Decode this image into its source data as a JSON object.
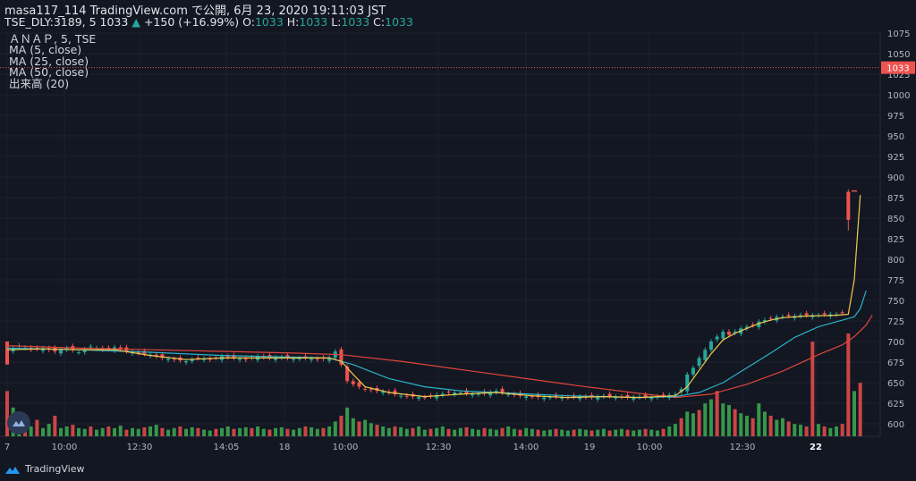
{
  "header": {
    "publish_line": "masa117_114 TradingView.com で公開, 6月 23, 2020 19:11:03 JST",
    "symbol": "TSE_DLY:3189, 5",
    "last": "1033",
    "change": "+150 (+16.99%)",
    "o_label": "O:",
    "o_value": "1033",
    "h_label": "H:",
    "h_value": "1033",
    "l_label": "L:",
    "l_value": "1033",
    "c_label": "C:",
    "c_value": "1033"
  },
  "legend": {
    "series_title": "ＡＮＡＰ, 5, TSE",
    "ma5": "MA (5, close)",
    "ma25": "MA (25, close)",
    "ma50": "MA (50, close)",
    "volume": "出来高 (20)"
  },
  "footer": {
    "brand": "TradingView"
  },
  "colors": {
    "background": "#131722",
    "grid": "#1e222d",
    "up": "#26a69a",
    "down": "#ef5350",
    "ma5": "#f2c94c",
    "ma25": "#2bb3c9",
    "ma50": "#e0453a",
    "vol_up": "#3aa54f",
    "vol_down": "#e04a4a"
  },
  "chart_data": {
    "type": "candlestick",
    "y_ticks": [
      600,
      625,
      650,
      675,
      700,
      725,
      750,
      775,
      800,
      825,
      850,
      875,
      900,
      925,
      950,
      975,
      1000,
      1025,
      1050,
      1075
    ],
    "ylim": [
      590,
      1080
    ],
    "x_ticks": [
      "7",
      "10:00",
      "12:30",
      "14:05",
      "18",
      "10:00",
      "12:30",
      "14:00",
      "19",
      "10:00",
      "12:30",
      "22"
    ],
    "x_ticks_bold": [
      "22"
    ],
    "last_price_label": "1033",
    "last_price": 1033,
    "close_path": [
      [
        0,
        688
      ],
      [
        2,
        695
      ],
      [
        4,
        690
      ],
      [
        6,
        692
      ],
      [
        8,
        688
      ],
      [
        10,
        692
      ],
      [
        12,
        687
      ],
      [
        14,
        694
      ],
      [
        16,
        690
      ],
      [
        18,
        693
      ],
      [
        20,
        688
      ],
      [
        22,
        686
      ],
      [
        24,
        684
      ],
      [
        26,
        680
      ],
      [
        28,
        678
      ],
      [
        30,
        676
      ],
      [
        32,
        680
      ],
      [
        34,
        678
      ],
      [
        36,
        682
      ],
      [
        38,
        680
      ],
      [
        40,
        678
      ],
      [
        42,
        682
      ],
      [
        44,
        680
      ],
      [
        46,
        681
      ],
      [
        48,
        679
      ],
      [
        50,
        680
      ],
      [
        52,
        678
      ],
      [
        54,
        680
      ],
      [
        55,
        688
      ],
      [
        56,
        672
      ],
      [
        57,
        652
      ],
      [
        58,
        648
      ],
      [
        60,
        642
      ],
      [
        62,
        640
      ],
      [
        64,
        638
      ],
      [
        66,
        634
      ],
      [
        68,
        633
      ],
      [
        70,
        632
      ],
      [
        72,
        635
      ],
      [
        74,
        638
      ],
      [
        76,
        638
      ],
      [
        78,
        636
      ],
      [
        80,
        637
      ],
      [
        82,
        640
      ],
      [
        84,
        636
      ],
      [
        86,
        634
      ],
      [
        88,
        633
      ],
      [
        90,
        632
      ],
      [
        92,
        633
      ],
      [
        94,
        632
      ],
      [
        96,
        633
      ],
      [
        98,
        632
      ],
      [
        100,
        634
      ],
      [
        102,
        633
      ],
      [
        104,
        632
      ],
      [
        106,
        633
      ],
      [
        108,
        632
      ],
      [
        110,
        634
      ],
      [
        112,
        636
      ],
      [
        113,
        642
      ],
      [
        114,
        660
      ],
      [
        115,
        668
      ],
      [
        116,
        680
      ],
      [
        117,
        690
      ],
      [
        118,
        700
      ],
      [
        119,
        706
      ],
      [
        120,
        712
      ],
      [
        121,
        708
      ],
      [
        122,
        712
      ],
      [
        123,
        716
      ],
      [
        124,
        718
      ],
      [
        125,
        720
      ],
      [
        126,
        724
      ],
      [
        127,
        726
      ],
      [
        128,
        728
      ],
      [
        129,
        730
      ],
      [
        130,
        730
      ],
      [
        131,
        731
      ],
      [
        132,
        731
      ],
      [
        133,
        732
      ],
      [
        134,
        732
      ],
      [
        135,
        732
      ],
      [
        136,
        732
      ],
      [
        137,
        733
      ],
      [
        138,
        733
      ],
      [
        139,
        733
      ],
      [
        140,
        735
      ],
      [
        141,
        850
      ],
      [
        142,
        883
      ]
    ],
    "volumes": [
      [
        0,
        0.55
      ],
      [
        1,
        0.35
      ],
      [
        2,
        0.15
      ],
      [
        3,
        0.25
      ],
      [
        4,
        0.12
      ],
      [
        5,
        0.2
      ],
      [
        6,
        0.1
      ],
      [
        7,
        0.15
      ],
      [
        8,
        0.25
      ],
      [
        9,
        0.1
      ],
      [
        10,
        0.12
      ],
      [
        11,
        0.14
      ],
      [
        12,
        0.1
      ],
      [
        13,
        0.09
      ],
      [
        14,
        0.12
      ],
      [
        15,
        0.08
      ],
      [
        16,
        0.1
      ],
      [
        17,
        0.12
      ],
      [
        18,
        0.1
      ],
      [
        19,
        0.13
      ],
      [
        20,
        0.08
      ],
      [
        21,
        0.1
      ],
      [
        22,
        0.09
      ],
      [
        23,
        0.11
      ],
      [
        24,
        0.12
      ],
      [
        25,
        0.14
      ],
      [
        26,
        0.1
      ],
      [
        27,
        0.08
      ],
      [
        28,
        0.1
      ],
      [
        29,
        0.12
      ],
      [
        30,
        0.09
      ],
      [
        31,
        0.11
      ],
      [
        32,
        0.1
      ],
      [
        33,
        0.08
      ],
      [
        34,
        0.07
      ],
      [
        35,
        0.09
      ],
      [
        36,
        0.1
      ],
      [
        37,
        0.12
      ],
      [
        38,
        0.09
      ],
      [
        39,
        0.1
      ],
      [
        40,
        0.11
      ],
      [
        41,
        0.1
      ],
      [
        42,
        0.12
      ],
      [
        43,
        0.09
      ],
      [
        44,
        0.08
      ],
      [
        45,
        0.1
      ],
      [
        46,
        0.11
      ],
      [
        47,
        0.09
      ],
      [
        48,
        0.08
      ],
      [
        49,
        0.1
      ],
      [
        50,
        0.12
      ],
      [
        51,
        0.11
      ],
      [
        52,
        0.09
      ],
      [
        53,
        0.1
      ],
      [
        54,
        0.12
      ],
      [
        55,
        0.18
      ],
      [
        56,
        0.25
      ],
      [
        57,
        0.35
      ],
      [
        58,
        0.22
      ],
      [
        59,
        0.18
      ],
      [
        60,
        0.2
      ],
      [
        61,
        0.16
      ],
      [
        62,
        0.14
      ],
      [
        63,
        0.12
      ],
      [
        64,
        0.1
      ],
      [
        65,
        0.12
      ],
      [
        66,
        0.11
      ],
      [
        67,
        0.09
      ],
      [
        68,
        0.1
      ],
      [
        69,
        0.12
      ],
      [
        70,
        0.08
      ],
      [
        71,
        0.09
      ],
      [
        72,
        0.1
      ],
      [
        73,
        0.12
      ],
      [
        74,
        0.09
      ],
      [
        75,
        0.08
      ],
      [
        76,
        0.1
      ],
      [
        77,
        0.11
      ],
      [
        78,
        0.09
      ],
      [
        79,
        0.08
      ],
      [
        80,
        0.1
      ],
      [
        81,
        0.09
      ],
      [
        82,
        0.08
      ],
      [
        83,
        0.1
      ],
      [
        84,
        0.12
      ],
      [
        85,
        0.09
      ],
      [
        86,
        0.08
      ],
      [
        87,
        0.1
      ],
      [
        88,
        0.09
      ],
      [
        89,
        0.08
      ],
      [
        90,
        0.07
      ],
      [
        91,
        0.08
      ],
      [
        92,
        0.09
      ],
      [
        93,
        0.08
      ],
      [
        94,
        0.07
      ],
      [
        95,
        0.08
      ],
      [
        96,
        0.09
      ],
      [
        97,
        0.08
      ],
      [
        98,
        0.07
      ],
      [
        99,
        0.08
      ],
      [
        100,
        0.09
      ],
      [
        101,
        0.07
      ],
      [
        102,
        0.08
      ],
      [
        103,
        0.09
      ],
      [
        104,
        0.08
      ],
      [
        105,
        0.07
      ],
      [
        106,
        0.08
      ],
      [
        107,
        0.09
      ],
      [
        108,
        0.08
      ],
      [
        109,
        0.07
      ],
      [
        110,
        0.09
      ],
      [
        111,
        0.12
      ],
      [
        112,
        0.15
      ],
      [
        113,
        0.22
      ],
      [
        114,
        0.3
      ],
      [
        115,
        0.28
      ],
      [
        116,
        0.32
      ],
      [
        117,
        0.4
      ],
      [
        118,
        0.45
      ],
      [
        119,
        0.55
      ],
      [
        120,
        0.4
      ],
      [
        121,
        0.38
      ],
      [
        122,
        0.33
      ],
      [
        123,
        0.28
      ],
      [
        124,
        0.25
      ],
      [
        125,
        0.22
      ],
      [
        126,
        0.4
      ],
      [
        127,
        0.3
      ],
      [
        128,
        0.25
      ],
      [
        129,
        0.2
      ],
      [
        130,
        0.22
      ],
      [
        131,
        0.18
      ],
      [
        132,
        0.15
      ],
      [
        133,
        0.14
      ],
      [
        134,
        0.12
      ],
      [
        135,
        1.15
      ],
      [
        136,
        0.15
      ],
      [
        137,
        0.12
      ],
      [
        138,
        0.1
      ],
      [
        139,
        0.12
      ],
      [
        140,
        0.15
      ],
      [
        141,
        1.25
      ],
      [
        142,
        0.55
      ],
      [
        143,
        0.65
      ]
    ],
    "volumes_down_idx": [
      0,
      3,
      5,
      8,
      11,
      14,
      17,
      20,
      23,
      26,
      29,
      32,
      35,
      38,
      41,
      44,
      47,
      50,
      53,
      56,
      59,
      62,
      65,
      68,
      71,
      74,
      77,
      80,
      83,
      86,
      89,
      92,
      95,
      98,
      101,
      104,
      107,
      110,
      113,
      116,
      119,
      122,
      125,
      128,
      131,
      134,
      135,
      137,
      140,
      141,
      143
    ],
    "ma5_path": [
      [
        0,
        690
      ],
      [
        6,
        691
      ],
      [
        12,
        690
      ],
      [
        18,
        690
      ],
      [
        24,
        683
      ],
      [
        30,
        678
      ],
      [
        36,
        680
      ],
      [
        42,
        680
      ],
      [
        48,
        680
      ],
      [
        54,
        680
      ],
      [
        56,
        676
      ],
      [
        58,
        660
      ],
      [
        60,
        645
      ],
      [
        64,
        638
      ],
      [
        70,
        633
      ],
      [
        76,
        636
      ],
      [
        82,
        638
      ],
      [
        88,
        634
      ],
      [
        94,
        632
      ],
      [
        100,
        633
      ],
      [
        106,
        632
      ],
      [
        112,
        634
      ],
      [
        114,
        645
      ],
      [
        116,
        665
      ],
      [
        118,
        685
      ],
      [
        120,
        702
      ],
      [
        122,
        710
      ],
      [
        124,
        716
      ],
      [
        126,
        722
      ],
      [
        128,
        726
      ],
      [
        130,
        729
      ],
      [
        134,
        731
      ],
      [
        139,
        732
      ],
      [
        141,
        733
      ],
      [
        142,
        775
      ],
      [
        143,
        878
      ]
    ],
    "ma25_path": [
      [
        0,
        692
      ],
      [
        12,
        690
      ],
      [
        24,
        687
      ],
      [
        36,
        683
      ],
      [
        48,
        681
      ],
      [
        54,
        680
      ],
      [
        58,
        672
      ],
      [
        64,
        655
      ],
      [
        70,
        645
      ],
      [
        76,
        640
      ],
      [
        82,
        638
      ],
      [
        88,
        636
      ],
      [
        94,
        634
      ],
      [
        100,
        633
      ],
      [
        106,
        632
      ],
      [
        112,
        633
      ],
      [
        116,
        638
      ],
      [
        120,
        650
      ],
      [
        124,
        668
      ],
      [
        128,
        686
      ],
      [
        132,
        705
      ],
      [
        136,
        718
      ],
      [
        140,
        726
      ],
      [
        142,
        730
      ],
      [
        143,
        740
      ],
      [
        144,
        762
      ]
    ],
    "ma50_path": [
      [
        0,
        695
      ],
      [
        12,
        692
      ],
      [
        24,
        690
      ],
      [
        36,
        688
      ],
      [
        48,
        686
      ],
      [
        56,
        684
      ],
      [
        66,
        676
      ],
      [
        76,
        666
      ],
      [
        86,
        656
      ],
      [
        96,
        646
      ],
      [
        106,
        637
      ],
      [
        112,
        632
      ],
      [
        118,
        636
      ],
      [
        124,
        648
      ],
      [
        130,
        664
      ],
      [
        136,
        684
      ],
      [
        140,
        696
      ],
      [
        142,
        706
      ],
      [
        144,
        720
      ],
      [
        145,
        732
      ]
    ]
  }
}
